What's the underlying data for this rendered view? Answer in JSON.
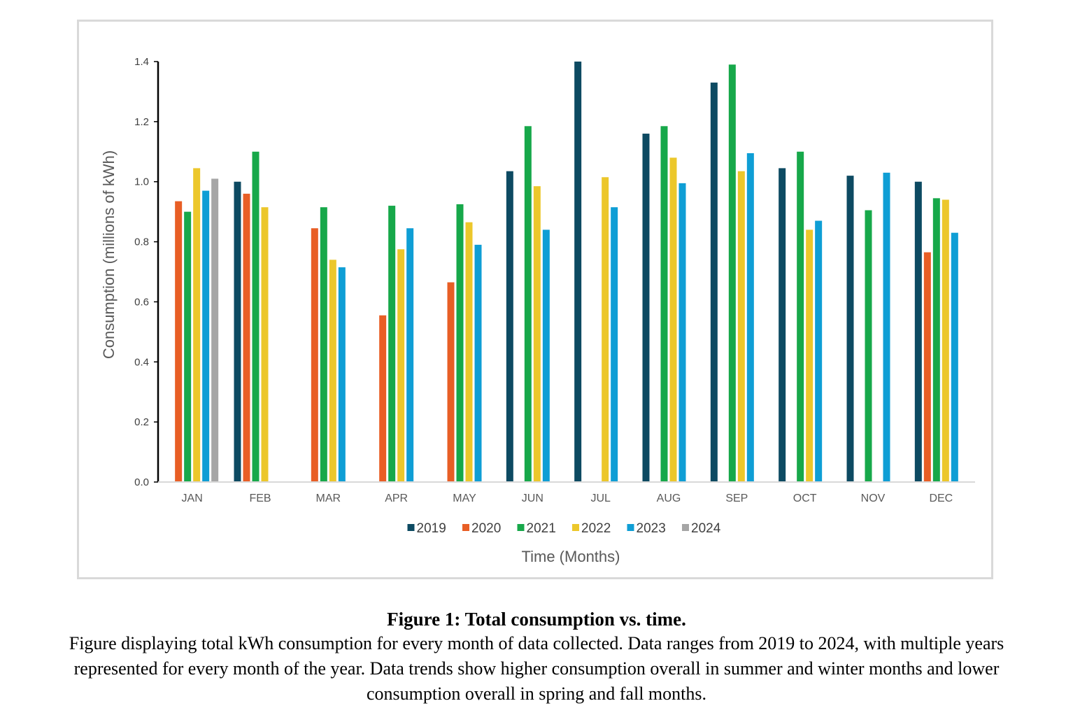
{
  "chart_data": {
    "type": "bar",
    "title": "",
    "xlabel": "Time (Months)",
    "ylabel": "Consumption (millions of kWh)",
    "ylim": [
      0,
      1.4
    ],
    "yticks": [
      "0.0",
      "0.2",
      "0.4",
      "0.6",
      "0.8",
      "1.0",
      "1.2",
      "1.4"
    ],
    "grid": false,
    "legend_position": "bottom",
    "categories": [
      "JAN",
      "FEB",
      "MAR",
      "APR",
      "MAY",
      "JUN",
      "JUL",
      "AUG",
      "SEP",
      "OCT",
      "NOV",
      "DEC"
    ],
    "series": [
      {
        "name": "2019",
        "color": "#0d4a62",
        "values": [
          null,
          1.0,
          null,
          null,
          null,
          1.035,
          1.4,
          1.16,
          1.33,
          1.045,
          1.02,
          1.0
        ]
      },
      {
        "name": "2020",
        "color": "#e85e25",
        "values": [
          0.935,
          0.96,
          0.845,
          0.555,
          0.665,
          null,
          null,
          null,
          null,
          null,
          null,
          0.765
        ]
      },
      {
        "name": "2021",
        "color": "#17a84a",
        "values": [
          0.9,
          1.1,
          0.915,
          0.92,
          0.925,
          1.185,
          null,
          1.185,
          1.39,
          1.1,
          0.905,
          0.945
        ]
      },
      {
        "name": "2022",
        "color": "#ecc72b",
        "values": [
          1.045,
          0.915,
          0.74,
          0.775,
          0.865,
          0.985,
          1.015,
          1.08,
          1.035,
          0.84,
          null,
          0.94
        ]
      },
      {
        "name": "2023",
        "color": "#0f9ed5",
        "values": [
          0.97,
          null,
          0.715,
          0.845,
          0.79,
          0.84,
          0.915,
          0.995,
          1.095,
          0.87,
          1.03,
          0.83
        ]
      },
      {
        "name": "2024",
        "color": "#a6a6a6",
        "values": [
          1.01,
          null,
          null,
          null,
          null,
          null,
          null,
          null,
          null,
          null,
          null,
          null
        ]
      }
    ]
  },
  "caption": {
    "title": "Figure 1: Total consumption vs. time.",
    "body": "Figure displaying total kWh consumption for every month of data collected. Data ranges from 2019 to 2024, with multiple years represented for every month of the year. Data trends show higher consumption overall in summer and winter months and lower consumption overall in spring and fall months."
  }
}
